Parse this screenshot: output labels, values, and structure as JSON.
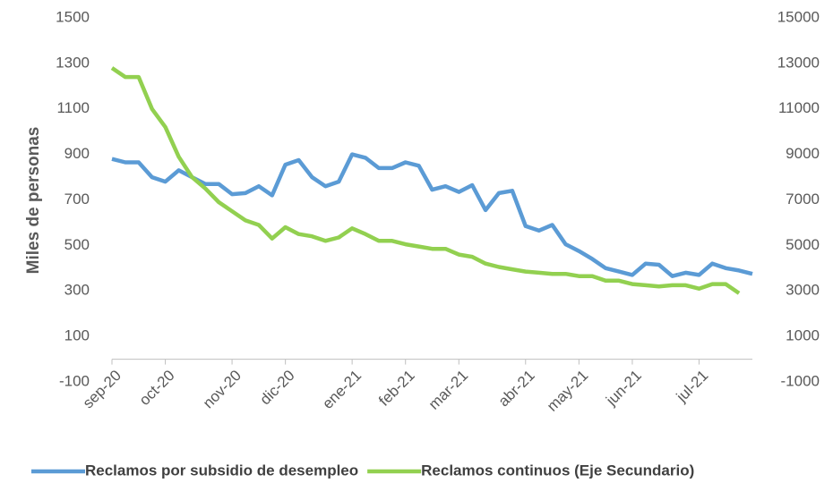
{
  "chart_data": {
    "type": "line",
    "y_label": "Miles de personas",
    "categories": [
      "sep-20",
      null,
      null,
      null,
      "oct-20",
      null,
      null,
      null,
      null,
      "nov-20",
      null,
      null,
      null,
      "dic-20",
      null,
      null,
      null,
      null,
      "ene-21",
      null,
      null,
      null,
      "feb-21",
      null,
      null,
      null,
      "mar-21",
      null,
      null,
      null,
      null,
      "abr-21",
      null,
      null,
      null,
      "may-21",
      null,
      null,
      null,
      "jun-21",
      null,
      null,
      null,
      null,
      "jul-21",
      null,
      null,
      null,
      null
    ],
    "series": [
      {
        "name": "Reclamos por subsidio de desempleo",
        "color": "#5b9bd5",
        "axis": "y",
        "values": [
          880,
          865,
          865,
          800,
          780,
          830,
          800,
          770,
          770,
          725,
          730,
          760,
          720,
          855,
          875,
          800,
          760,
          780,
          900,
          885,
          840,
          840,
          865,
          850,
          745,
          760,
          735,
          765,
          655,
          730,
          740,
          585,
          565,
          590,
          505,
          475,
          440,
          400,
          385,
          370,
          420,
          415,
          365,
          380,
          370,
          420,
          400,
          390,
          375
        ]
      },
      {
        "name": "Reclamos continuos (Eje Secundario)",
        "color": "#92d050",
        "axis": "y2",
        "values": [
          12800,
          12400,
          12400,
          11000,
          10200,
          8900,
          8000,
          7500,
          6900,
          6500,
          6100,
          5900,
          5300,
          5800,
          5500,
          5400,
          5200,
          5350,
          5750,
          5500,
          5200,
          5200,
          5050,
          4950,
          4850,
          4850,
          4600,
          4500,
          4200,
          4050,
          3950,
          3850,
          3800,
          3750,
          3750,
          3650,
          3650,
          3450,
          3450,
          3300,
          3250,
          3200,
          3250,
          3250,
          3100,
          3300,
          3300,
          2900,
          null
        ]
      }
    ],
    "ylim": [
      -100,
      1500
    ],
    "yticks": [
      -100,
      100,
      300,
      500,
      700,
      900,
      1100,
      1300,
      1500
    ],
    "y2lim": [
      -1000,
      15000
    ],
    "y2ticks": [
      -1000,
      1000,
      3000,
      5000,
      7000,
      9000,
      11000,
      13000,
      15000
    ],
    "legend": "bottom"
  }
}
